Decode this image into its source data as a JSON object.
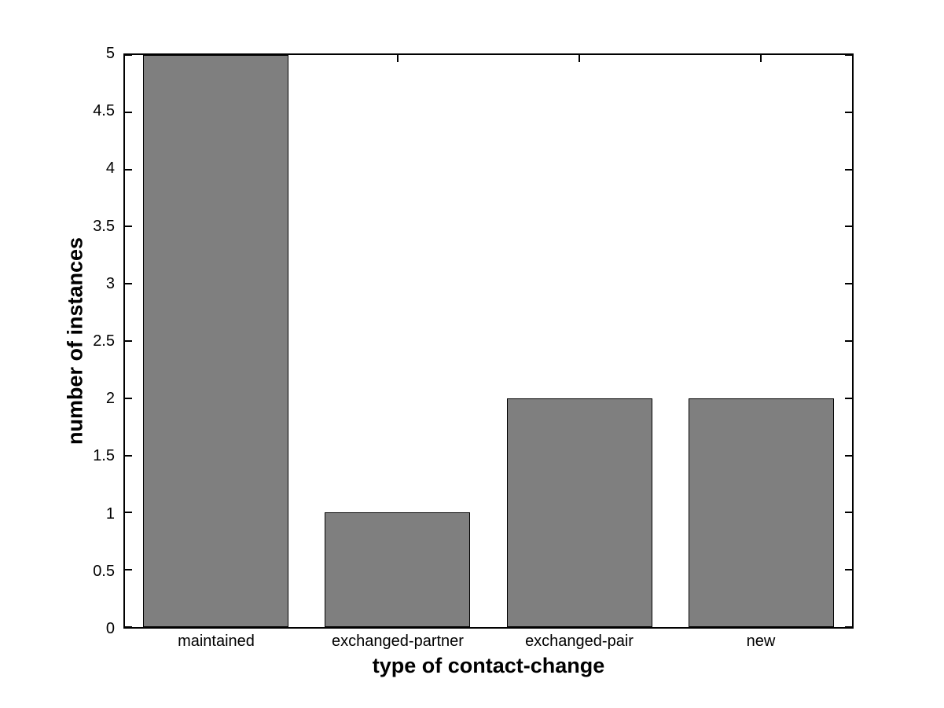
{
  "chart_data": {
    "type": "bar",
    "categories": [
      "maintained",
      "exchanged-partner",
      "exchanged-pair",
      "new"
    ],
    "values": [
      5,
      1,
      2,
      2
    ],
    "title": "",
    "xlabel": "type of contact-change",
    "ylabel": "number of instances",
    "ylim": [
      0,
      5
    ],
    "yticks": [
      0,
      0.5,
      1,
      1.5,
      2,
      2.5,
      3,
      3.5,
      4,
      4.5,
      5
    ],
    "ytick_labels": [
      "0",
      "0.5",
      "1",
      "1.5",
      "2",
      "2.5",
      "3",
      "3.5",
      "4",
      "4.5",
      "5"
    ],
    "grid": false,
    "legend": "none",
    "tick_direction": "in",
    "bar_width_fraction": 0.8,
    "colors": {
      "bar_fill": "#7f7f7f",
      "bar_edge": "#000000",
      "axis": "#000000",
      "background": "#ffffff",
      "text": "#000000"
    }
  }
}
